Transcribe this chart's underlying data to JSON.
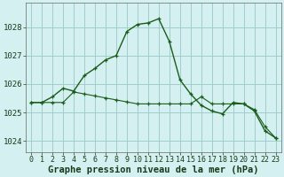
{
  "line1_x": [
    0,
    1,
    2,
    3,
    4,
    5,
    6,
    7,
    8,
    9,
    10,
    11,
    12,
    13,
    14,
    15,
    16,
    17,
    18,
    19,
    20,
    21,
    22,
    23
  ],
  "line1_y": [
    1025.35,
    1025.35,
    1025.55,
    1025.85,
    1025.75,
    1026.3,
    1026.55,
    1026.85,
    1027.0,
    1027.85,
    1028.1,
    1028.15,
    1028.3,
    1027.5,
    1026.15,
    1025.65,
    1025.25,
    1025.05,
    1024.95,
    1025.35,
    1025.3,
    1025.05,
    1024.35,
    1024.1
  ],
  "line2_x": [
    0,
    1,
    2,
    3,
    4,
    5,
    6,
    7,
    8,
    9,
    10,
    11,
    12,
    13,
    14,
    15,
    16,
    17,
    18,
    19,
    20,
    21,
    22,
    23
  ],
  "line2_y": [
    1025.35,
    1025.35,
    1025.35,
    1025.35,
    1025.72,
    1025.65,
    1025.58,
    1025.51,
    1025.44,
    1025.37,
    1025.3,
    1025.3,
    1025.3,
    1025.3,
    1025.3,
    1025.3,
    1025.55,
    1025.3,
    1025.3,
    1025.3,
    1025.3,
    1025.1,
    1024.5,
    1024.1
  ],
  "line_color": "#1a5c1a",
  "marker": "+",
  "background_color": "#d4f0f0",
  "grid_color": "#a0cccc",
  "xlabel": "Graphe pression niveau de la mer (hPa)",
  "xlim_min": -0.5,
  "xlim_max": 23.5,
  "ylim_min": 1023.6,
  "ylim_max": 1028.85,
  "yticks": [
    1024,
    1025,
    1026,
    1027,
    1028
  ],
  "xticks": [
    0,
    1,
    2,
    3,
    4,
    5,
    6,
    7,
    8,
    9,
    10,
    11,
    12,
    13,
    14,
    15,
    16,
    17,
    18,
    19,
    20,
    21,
    22,
    23
  ],
  "tick_fontsize": 6,
  "label_fontsize": 7.5
}
